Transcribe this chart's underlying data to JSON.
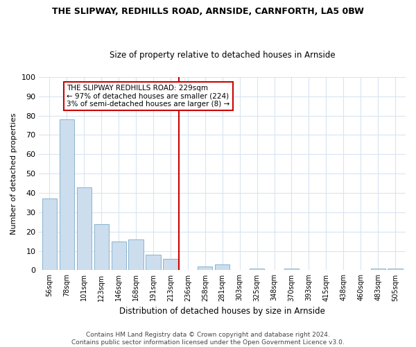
{
  "title1": "THE SLIPWAY, REDHILLS ROAD, ARNSIDE, CARNFORTH, LA5 0BW",
  "title2": "Size of property relative to detached houses in Arnside",
  "xlabel": "Distribution of detached houses by size in Arnside",
  "ylabel": "Number of detached properties",
  "bar_values": [
    37,
    78,
    43,
    24,
    15,
    16,
    8,
    6,
    0,
    2,
    3,
    0,
    1,
    0,
    1,
    0,
    0,
    0,
    0,
    1,
    1
  ],
  "bar_labels": [
    "56sqm",
    "78sqm",
    "101sqm",
    "123sqm",
    "146sqm",
    "168sqm",
    "191sqm",
    "213sqm",
    "236sqm",
    "258sqm",
    "281sqm",
    "303sqm",
    "325sqm",
    "348sqm",
    "370sqm",
    "393sqm",
    "415sqm",
    "438sqm",
    "460sqm",
    "483sqm",
    "505sqm"
  ],
  "bar_color": "#ccdded",
  "bar_edge_color": "#7aaac8",
  "vline_x": 7.5,
  "vline_color": "#cc0000",
  "annotation_text": "THE SLIPWAY REDHILLS ROAD: 229sqm\n← 97% of detached houses are smaller (224)\n3% of semi-detached houses are larger (8) →",
  "annotation_box_color": "#cc0000",
  "ylim": [
    0,
    100
  ],
  "yticks": [
    0,
    10,
    20,
    30,
    40,
    50,
    60,
    70,
    80,
    90,
    100
  ],
  "footer": "Contains HM Land Registry data © Crown copyright and database right 2024.\nContains public sector information licensed under the Open Government Licence v3.0.",
  "bg_color": "#ffffff",
  "grid_color": "#d8e4f0"
}
